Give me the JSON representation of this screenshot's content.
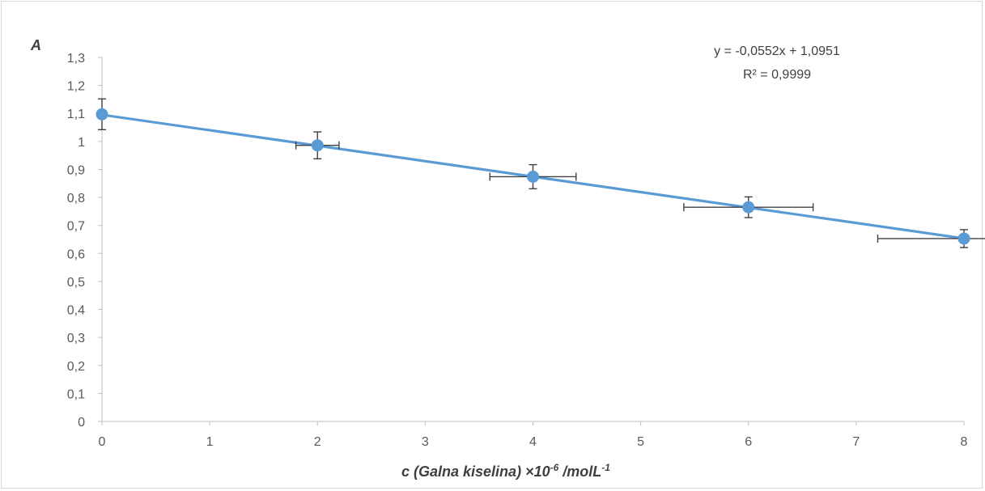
{
  "chart_data": {
    "type": "scatter",
    "y_axis_title": "A",
    "x_axis_title": {
      "prefix": "c (Galna kiselina) ×10",
      "exp1": "-6",
      "middle": " /molL",
      "exp2": "-1"
    },
    "xlim": [
      0,
      8
    ],
    "ylim": [
      0,
      1.3
    ],
    "x_ticks": [
      "0",
      "1",
      "2",
      "3",
      "4",
      "5",
      "6",
      "7",
      "8"
    ],
    "y_ticks": [
      "0",
      "0,1",
      "0,2",
      "0,3",
      "0,4",
      "0,5",
      "0,6",
      "0,7",
      "0,8",
      "0,9",
      "1",
      "1,1",
      "1,2",
      "1,3"
    ],
    "grid": false,
    "legend": "none",
    "series": [
      {
        "x": [
          0,
          2,
          4,
          6,
          8
        ],
        "y": [
          1.097,
          0.986,
          0.874,
          0.765,
          0.653
        ],
        "y_err": [
          0.055,
          0.048,
          0.043,
          0.037,
          0.032
        ],
        "x_err": [
          0,
          0.2,
          0.4,
          0.6,
          0.8
        ],
        "color": "#5b9bd5"
      }
    ],
    "trendline": {
      "slope": -0.0552,
      "intercept": 1.0951,
      "color": "#5b9bd5",
      "equation": "y = -0,0552x + 1,0951",
      "r_squared": "R² = 0,9999"
    },
    "error_bar_color": "#404040",
    "axis_color": "#bfbfbf"
  }
}
